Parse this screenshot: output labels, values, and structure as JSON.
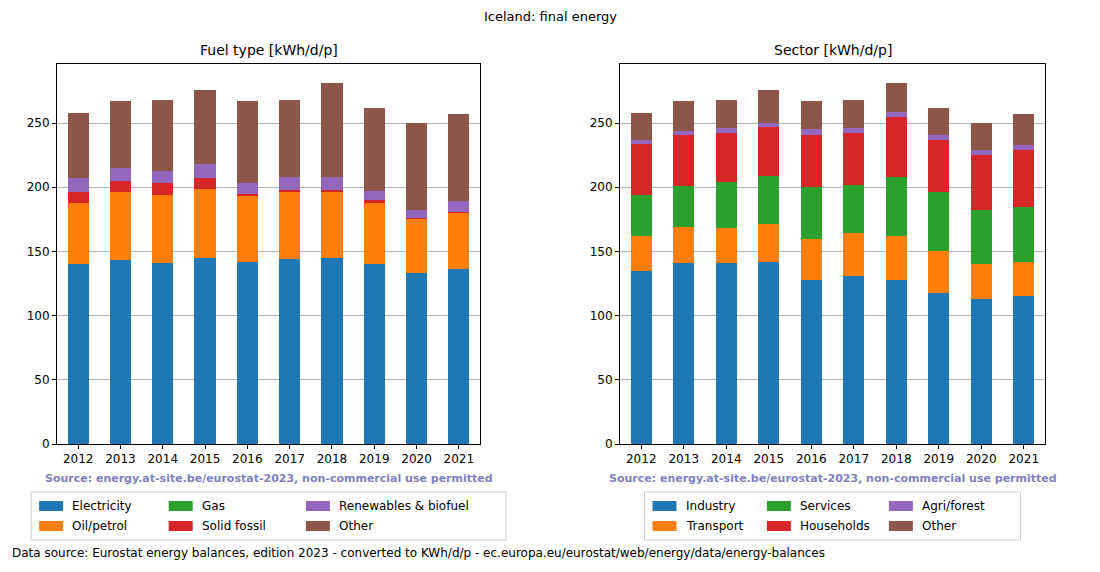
{
  "title": "Iceland: final energy",
  "annotations": [
    "Data source: Eurostat energy balances, edition 2023 - converted to KWh/d/p - ec.europa.eu/eurostat/web/energy/data/energy-balances"
  ],
  "chart_data": [
    {
      "type": "bar",
      "title": "Fuel type [kWh/d/p]",
      "annotations": [
        "Source: energy.at-site.be/eurostat-2023, non-commercial use permitted"
      ],
      "categories": [
        "2012",
        "2013",
        "2014",
        "2015",
        "2016",
        "2017",
        "2018",
        "2019",
        "2020",
        "2021"
      ],
      "series": [
        {
          "name": "Electricity",
          "color": "#1f77b4",
          "values": [
            140,
            143,
            141,
            145,
            142,
            144,
            145,
            140,
            133,
            136
          ]
        },
        {
          "name": "Oil/petrol",
          "color": "#ff7f0e",
          "values": [
            48,
            53,
            53,
            54,
            51,
            52,
            51,
            48,
            42,
            44
          ]
        },
        {
          "name": "Gas",
          "color": "#2ca02c",
          "values": [
            0,
            0,
            0,
            0,
            0,
            0,
            0,
            0,
            0,
            0
          ]
        },
        {
          "name": "Solid fossil",
          "color": "#d62728",
          "values": [
            8,
            9,
            9,
            8,
            2,
            2,
            2,
            2,
            1,
            1
          ]
        },
        {
          "name": "Renewables & biofuel",
          "color": "#9467bd",
          "values": [
            11,
            10,
            10,
            11,
            8,
            10,
            10,
            7,
            6,
            8
          ]
        },
        {
          "name": "Other",
          "color": "#8c564b",
          "values": [
            51,
            52,
            55,
            58,
            64,
            60,
            73,
            65,
            68,
            68
          ]
        }
      ],
      "ylim": [
        0,
        296
      ],
      "yticks": [
        0,
        50,
        100,
        150,
        200,
        250
      ],
      "grid": true,
      "stacked": true,
      "legend": "bottom"
    },
    {
      "type": "bar",
      "title": "Sector [kWh/d/p]",
      "annotations": [
        "Source: energy.at-site.be/eurostat-2023, non-commercial use permitted"
      ],
      "categories": [
        "2012",
        "2013",
        "2014",
        "2015",
        "2016",
        "2017",
        "2018",
        "2019",
        "2020",
        "2021"
      ],
      "series": [
        {
          "name": "Industry",
          "color": "#1f77b4",
          "values": [
            135,
            141,
            141,
            142,
            128,
            131,
            128,
            118,
            113,
            115
          ]
        },
        {
          "name": "Transport",
          "color": "#ff7f0e",
          "values": [
            27,
            28,
            27,
            29,
            32,
            33,
            34,
            32,
            27,
            27
          ]
        },
        {
          "name": "Services",
          "color": "#2ca02c",
          "values": [
            32,
            32,
            36,
            38,
            40,
            38,
            46,
            46,
            42,
            43
          ]
        },
        {
          "name": "Households",
          "color": "#d62728",
          "values": [
            40,
            40,
            38,
            38,
            41,
            40,
            47,
            41,
            43,
            44
          ]
        },
        {
          "name": "Agri/forest",
          "color": "#9467bd",
          "values": [
            3,
            3,
            4,
            3,
            4,
            4,
            4,
            4,
            4,
            4
          ]
        },
        {
          "name": "Other",
          "color": "#8c564b",
          "values": [
            21,
            23,
            22,
            26,
            22,
            22,
            22,
            21,
            21,
            24
          ]
        }
      ],
      "ylim": [
        0,
        296
      ],
      "yticks": [
        0,
        50,
        100,
        150,
        200,
        250
      ],
      "grid": true,
      "stacked": true,
      "legend": "bottom"
    }
  ]
}
